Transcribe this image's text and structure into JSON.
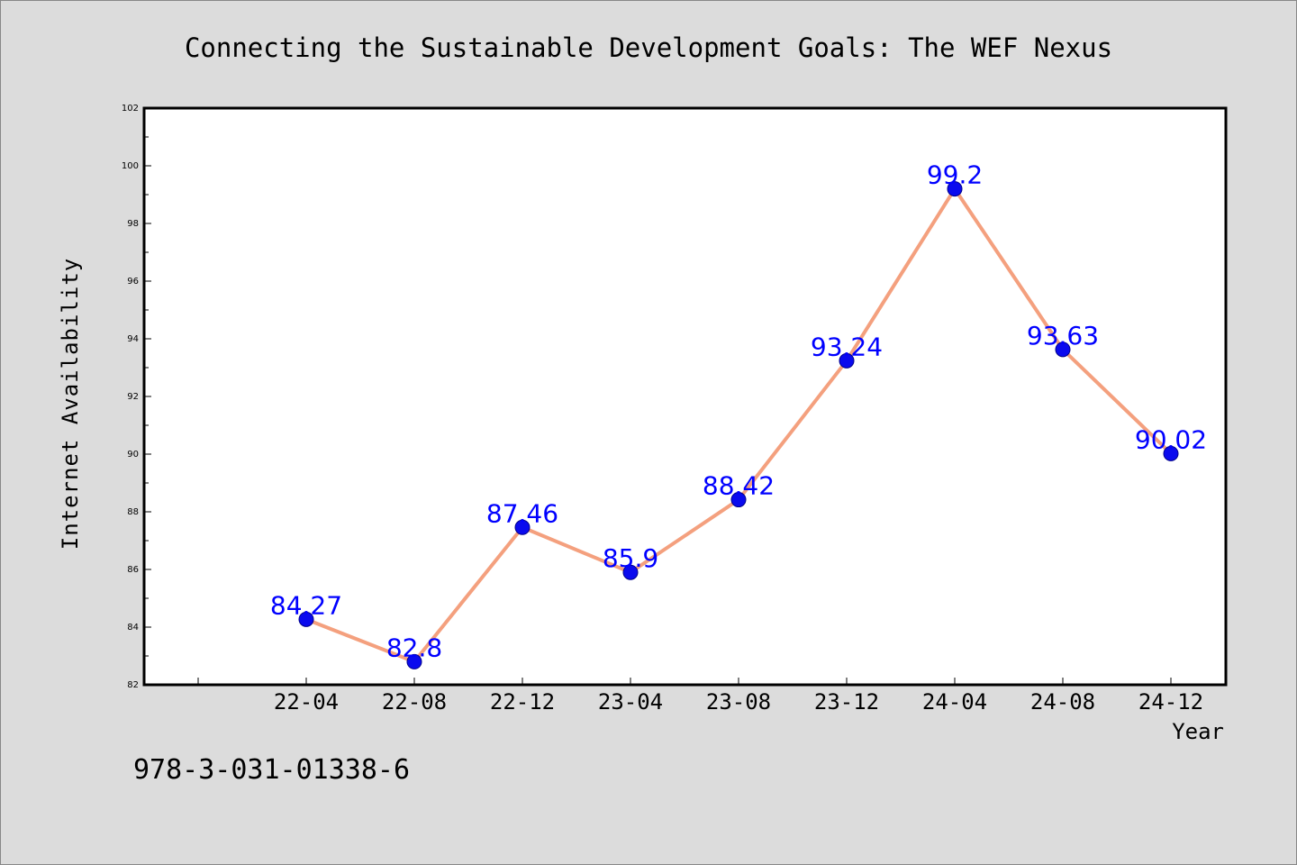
{
  "chart_data": {
    "type": "line",
    "title": "Connecting the Sustainable Development Goals: The WEF Nexus",
    "xlabel": "Year",
    "ylabel": "Internet Availability",
    "categories": [
      "22-04",
      "22-08",
      "22-12",
      "23-04",
      "23-08",
      "23-12",
      "24-04",
      "24-08",
      "24-12"
    ],
    "series": [
      {
        "values": [
          84.27,
          82.8,
          87.46,
          85.9,
          88.42,
          93.24,
          99.2,
          93.63,
          90.02
        ],
        "data_labels": [
          "84.27",
          "82.8",
          "87.46",
          "85.9",
          "88.42",
          "93.24",
          "99.2",
          "93.63",
          "90.02"
        ]
      }
    ],
    "ylim": [
      82,
      102
    ],
    "yticks": [
      "82",
      "84",
      "86",
      "88",
      "90",
      "92",
      "94",
      "96",
      "98",
      "100",
      "102"
    ],
    "grid": false,
    "legend": "none",
    "colors": {
      "line": "#f4a07e",
      "marker": "#0a0aee",
      "data_label": "#0000ff",
      "background": "#dcdcdc",
      "plot_background": "#ffffff"
    }
  },
  "footnote": "978-3-031-01338-6"
}
